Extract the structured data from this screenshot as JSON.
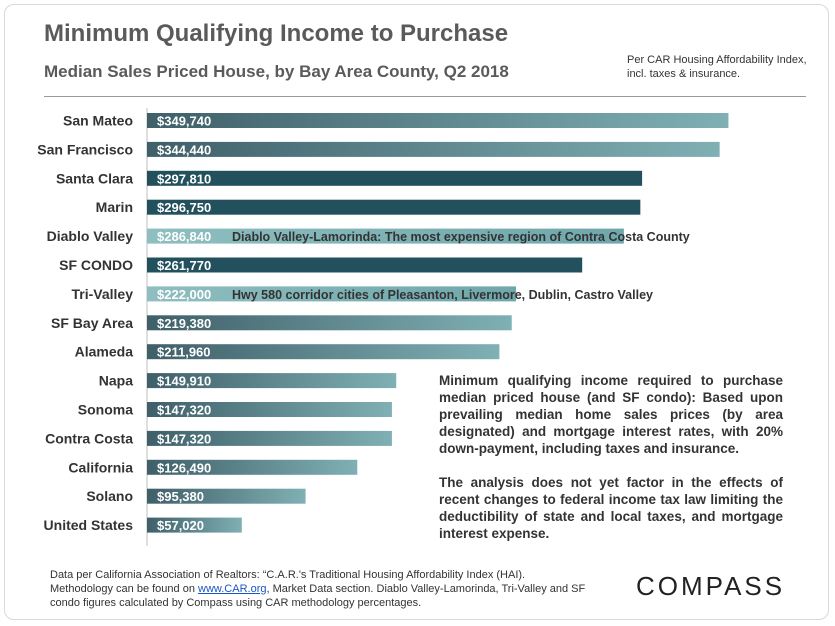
{
  "header": {
    "title": "Minimum Qualifying Income to Purchase",
    "subtitle": "Median Sales Priced House, by Bay Area County, Q2 2018",
    "note": "Per CAR Housing Affordability Index, incl. taxes & insurance."
  },
  "chart_data": {
    "type": "bar",
    "orientation": "horizontal",
    "categories": [
      "San Mateo",
      "San Francisco",
      "Santa Clara",
      "Marin",
      "Diablo Valley",
      "SF CONDO",
      "Tri-Valley",
      "SF Bay Area",
      "Alameda",
      "Napa",
      "Sonoma",
      "Contra Costa",
      "California",
      "Solano",
      "United States"
    ],
    "values": [
      349740,
      344440,
      297810,
      296750,
      286840,
      261770,
      222000,
      219380,
      211960,
      149910,
      147320,
      147320,
      126490,
      95380,
      57020
    ],
    "value_labels": [
      "$349,740",
      "$344,440",
      "$297,810",
      "$296,750",
      "$286,840",
      "$261,770",
      "$222,000",
      "$219,380",
      "$211,960",
      "$149,910",
      "$147,320",
      "$147,320",
      "$126,490",
      "$95,380",
      "$57,020"
    ],
    "styles": [
      "gradient",
      "gradient",
      "solid",
      "solid",
      "light",
      "solid",
      "light",
      "gradient",
      "gradient",
      "gradient",
      "gradient",
      "gradient",
      "gradient",
      "gradient",
      "gradient"
    ],
    "annotations": [
      {
        "category": "Diablo Valley",
        "text": "Diablo Valley-Lamorinda:  The most expensive region of Contra Costa County"
      },
      {
        "category": "Tri-Valley",
        "text": "Hwy 580 corridor cities of Pleasanton, Livermore, Dublin, Castro Valley"
      }
    ],
    "xlim": [
      0,
      400000
    ],
    "grid": false,
    "colors": {
      "gradient_start": "#3f5f69",
      "gradient_end": "#7fb0b4",
      "solid": "#22505d",
      "light_start": "#8ebec0",
      "light_end": "#6fa7ab"
    }
  },
  "explanation": {
    "para1": "Minimum qualifying income required to purchase median priced house (and SF condo): Based upon prevailing median home sales prices (by area designated) and mortgage interest rates, with 20% down-payment, including taxes and insurance.",
    "para2": "The analysis does not yet factor in the effects of recent changes to federal income tax law limiting the deductibility of state and local taxes, and mortgage interest expense."
  },
  "footer": {
    "text1": "Data per California Association of Realtors: “C.A.R.'s Traditional Housing Affordability Index (HAI). Methodology can be found on ",
    "link": "www.CAR.org",
    "text2": ", Market Data section. Diablo Valley-Lamorinda, Tri-Valley and SF condo figures calculated by Compass using CAR methodology percentages."
  },
  "brand": {
    "logo": "COMPASS"
  }
}
